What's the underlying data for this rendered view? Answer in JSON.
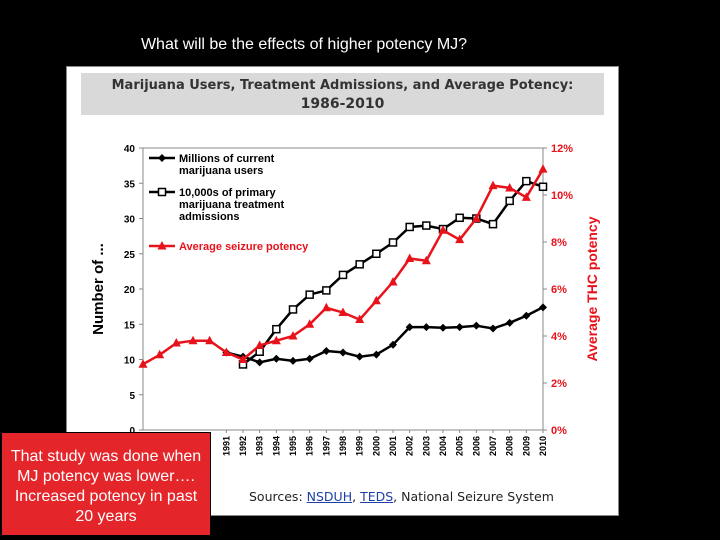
{
  "slide": {
    "title": "What will be the effects of higher potency MJ?",
    "note": "That study was done when MJ potency was lower…. Increased potency in past 20 years"
  },
  "figure": {
    "title_line1": "Marijuana Users, Treatment Admissions, and Average Potency:",
    "title_line2": "1986-2010",
    "sources_prefix": "Sources: ",
    "source_1": "NSDUH",
    "separator": ", ",
    "source_2": "TEDS",
    "sources_suffix": ", National Seizure System"
  },
  "chart_data": {
    "type": "line",
    "x": [
      1986,
      1987,
      1988,
      1989,
      1990,
      1991,
      1992,
      1993,
      1994,
      1995,
      1996,
      1997,
      1998,
      1999,
      2000,
      2001,
      2002,
      2003,
      2004,
      2005,
      2006,
      2007,
      2008,
      2009,
      2010
    ],
    "x_tick_labels": [
      "1991",
      "1992",
      "1993",
      "1994",
      "1995",
      "1996",
      "1997",
      "1998",
      "1999",
      "2000",
      "2001",
      "2002",
      "2003",
      "2004",
      "2005",
      "2006",
      "2007",
      "2008",
      "2009",
      "2010"
    ],
    "ylabel": "Number of ...",
    "y2label": "Average THC potency",
    "ylim": [
      0,
      40
    ],
    "y_ticks": [
      "0",
      "5",
      "10",
      "15",
      "20",
      "25",
      "30",
      "35",
      "40"
    ],
    "y2lim": [
      0,
      12
    ],
    "y2_ticks": [
      "0%",
      "2%",
      "4%",
      "6%",
      "8%",
      "10%",
      "12%"
    ],
    "grid": false,
    "legend_position": "top-left",
    "colors": {
      "users": "#000000",
      "treatment": "#000000",
      "potency": "#e8121b",
      "axis_left": "#000000",
      "axis_right": "#e8121b"
    },
    "series": [
      {
        "name": "Millions of current marijuana users",
        "axis": "left",
        "marker": "diamond",
        "values": [
          null,
          null,
          null,
          null,
          null,
          11.0,
          10.4,
          9.6,
          10.1,
          9.8,
          10.1,
          11.2,
          11.0,
          10.4,
          10.7,
          12.1,
          14.6,
          14.6,
          14.5,
          14.6,
          14.8,
          14.4,
          15.2,
          16.2,
          17.4
        ]
      },
      {
        "name": "10,000s of primary marijuana treatment admissions",
        "axis": "left",
        "marker": "square-open",
        "values": [
          null,
          null,
          null,
          null,
          null,
          null,
          9.3,
          11.1,
          14.3,
          17.1,
          19.2,
          19.8,
          22.0,
          23.5,
          25.0,
          26.6,
          28.8,
          29.0,
          28.5,
          30.1,
          30.0,
          29.2,
          32.5,
          35.3,
          34.5
        ]
      },
      {
        "name": "Average seizure potency",
        "axis": "right",
        "marker": "triangle",
        "values": [
          2.8,
          3.2,
          3.7,
          3.8,
          3.8,
          3.3,
          3.0,
          3.6,
          3.8,
          4.0,
          4.5,
          5.2,
          5.0,
          4.7,
          5.5,
          6.3,
          7.3,
          7.2,
          8.5,
          8.1,
          9.0,
          10.4,
          10.3,
          9.9,
          11.1
        ]
      }
    ]
  }
}
